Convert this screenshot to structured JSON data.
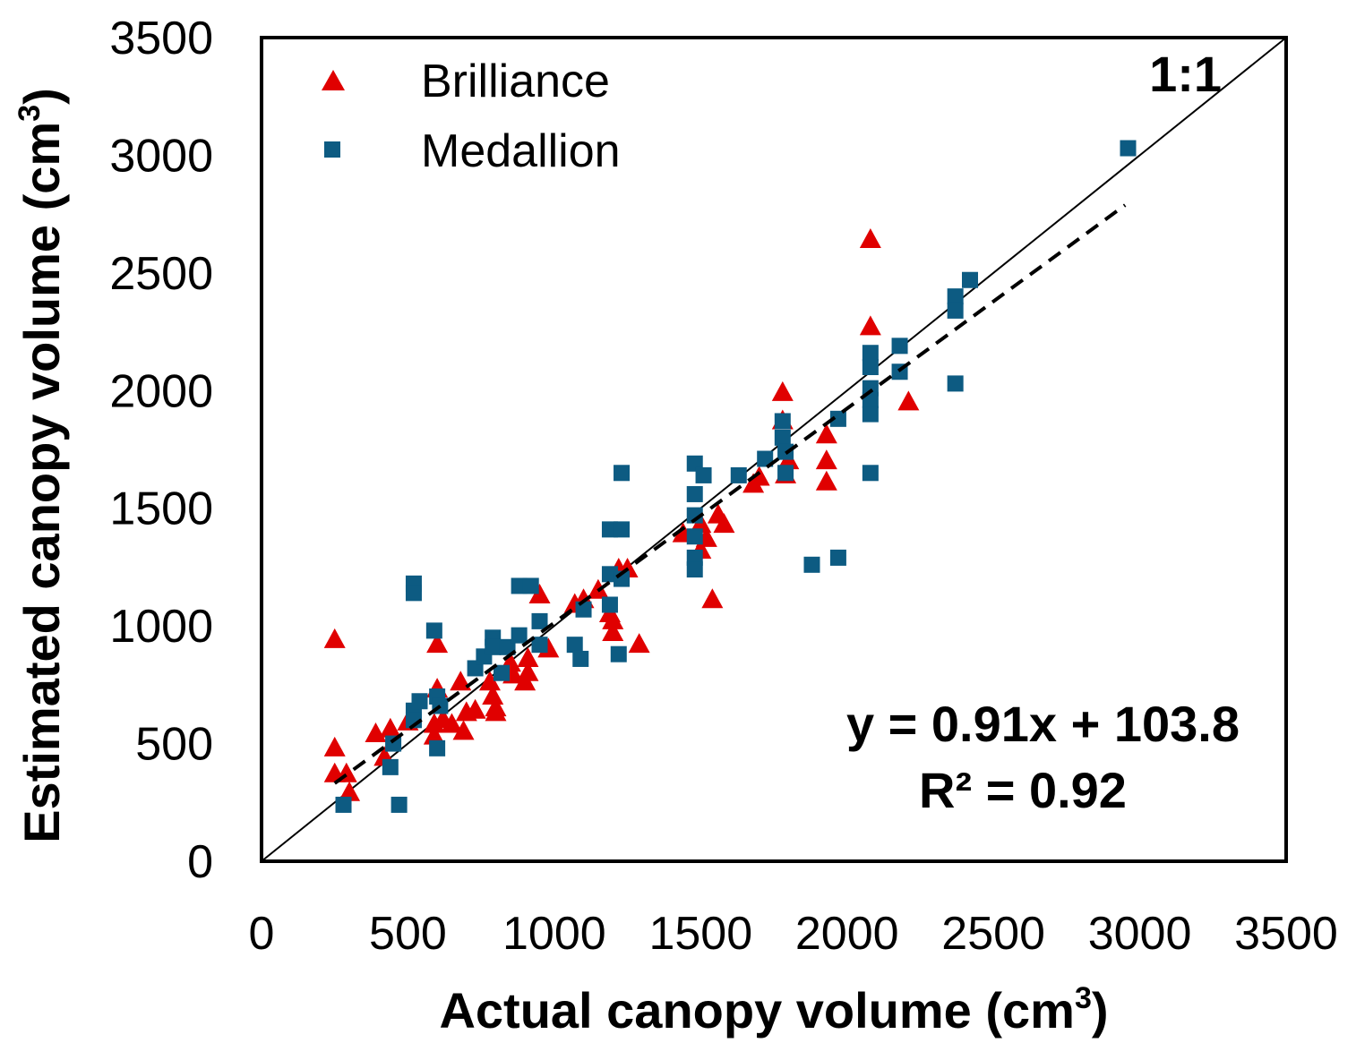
{
  "chart_data": {
    "type": "scatter",
    "xlabel": "Actual canopy volume (cm",
    "xlabel_sup": "3",
    "xlabel_end": ")",
    "ylabel": "Estimated canopy volume (cm",
    "ylabel_sup": "3",
    "ylabel_end": ")",
    "xlim": [
      0,
      3500
    ],
    "ylim": [
      0,
      3500
    ],
    "x_ticks": [
      "0",
      "500",
      "1000",
      "1500",
      "2000",
      "2500",
      "3000",
      "3500"
    ],
    "y_ticks": [
      "0",
      "500",
      "1000",
      "1500",
      "2000",
      "2500",
      "3000",
      "3500"
    ],
    "grid": false,
    "legend_position": "top-left",
    "one_to_one_label": "1:1",
    "equation": "y = 0.91x + 103.8",
    "r_squared": "R² = 0.92",
    "fit_line": {
      "slope": 0.91,
      "intercept": 103.8,
      "x_range": [
        250,
        2950
      ]
    },
    "series": [
      {
        "name": "Brilliance",
        "marker": "triangle",
        "color": "#e00000",
        "points": [
          [
            250,
            940
          ],
          [
            250,
            480
          ],
          [
            250,
            370
          ],
          [
            290,
            370
          ],
          [
            300,
            290
          ],
          [
            390,
            540
          ],
          [
            420,
            440
          ],
          [
            440,
            560
          ],
          [
            500,
            590
          ],
          [
            590,
            580
          ],
          [
            590,
            530
          ],
          [
            600,
            920
          ],
          [
            600,
            730
          ],
          [
            620,
            600
          ],
          [
            650,
            580
          ],
          [
            680,
            760
          ],
          [
            690,
            550
          ],
          [
            700,
            630
          ],
          [
            730,
            640
          ],
          [
            780,
            760
          ],
          [
            790,
            700
          ],
          [
            800,
            650
          ],
          [
            800,
            630
          ],
          [
            850,
            840
          ],
          [
            860,
            790
          ],
          [
            900,
            760
          ],
          [
            910,
            800
          ],
          [
            910,
            860
          ],
          [
            950,
            1130
          ],
          [
            980,
            900
          ],
          [
            1070,
            1090
          ],
          [
            1100,
            1110
          ],
          [
            1150,
            1150
          ],
          [
            1190,
            1050
          ],
          [
            1200,
            1020
          ],
          [
            1200,
            970
          ],
          [
            1220,
            1240
          ],
          [
            1250,
            1240
          ],
          [
            1290,
            920
          ],
          [
            1440,
            1390
          ],
          [
            1500,
            1430
          ],
          [
            1500,
            1320
          ],
          [
            1520,
            1370
          ],
          [
            1540,
            1110
          ],
          [
            1560,
            1470
          ],
          [
            1580,
            1430
          ],
          [
            1680,
            1600
          ],
          [
            1700,
            1630
          ],
          [
            1780,
            1990
          ],
          [
            1780,
            1870
          ],
          [
            1790,
            1640
          ],
          [
            1800,
            1700
          ],
          [
            1930,
            1810
          ],
          [
            1930,
            1700
          ],
          [
            1930,
            1610
          ],
          [
            2080,
            2640
          ],
          [
            2080,
            2270
          ],
          [
            2210,
            1950
          ]
        ]
      },
      {
        "name": "Medallion",
        "marker": "square",
        "color": "#0d5b82",
        "points": [
          [
            280,
            240
          ],
          [
            440,
            400
          ],
          [
            450,
            500
          ],
          [
            470,
            240
          ],
          [
            520,
            1180
          ],
          [
            520,
            1140
          ],
          [
            520,
            640
          ],
          [
            520,
            600
          ],
          [
            540,
            680
          ],
          [
            590,
            980
          ],
          [
            600,
            480
          ],
          [
            600,
            700
          ],
          [
            610,
            660
          ],
          [
            730,
            820
          ],
          [
            760,
            870
          ],
          [
            790,
            950
          ],
          [
            790,
            910
          ],
          [
            820,
            800
          ],
          [
            840,
            910
          ],
          [
            880,
            1170
          ],
          [
            880,
            960
          ],
          [
            920,
            1170
          ],
          [
            950,
            1020
          ],
          [
            950,
            920
          ],
          [
            1070,
            920
          ],
          [
            1090,
            860
          ],
          [
            1100,
            1070
          ],
          [
            1190,
            1410
          ],
          [
            1190,
            1220
          ],
          [
            1190,
            1090
          ],
          [
            1220,
            880
          ],
          [
            1230,
            1650
          ],
          [
            1230,
            1410
          ],
          [
            1230,
            1200
          ],
          [
            1480,
            1690
          ],
          [
            1480,
            1560
          ],
          [
            1480,
            1470
          ],
          [
            1480,
            1380
          ],
          [
            1480,
            1290
          ],
          [
            1480,
            1240
          ],
          [
            1510,
            1640
          ],
          [
            1630,
            1640
          ],
          [
            1720,
            1710
          ],
          [
            1780,
            1870
          ],
          [
            1780,
            1800
          ],
          [
            1790,
            1740
          ],
          [
            1790,
            1650
          ],
          [
            1880,
            1260
          ],
          [
            1970,
            1880
          ],
          [
            1970,
            1290
          ],
          [
            2080,
            2160
          ],
          [
            2080,
            2100
          ],
          [
            2080,
            2010
          ],
          [
            2080,
            1960
          ],
          [
            2080,
            1900
          ],
          [
            2080,
            1650
          ],
          [
            2180,
            2190
          ],
          [
            2180,
            2080
          ],
          [
            2370,
            2400
          ],
          [
            2370,
            2340
          ],
          [
            2370,
            2030
          ],
          [
            2420,
            2470
          ],
          [
            2960,
            3030
          ]
        ]
      }
    ]
  }
}
